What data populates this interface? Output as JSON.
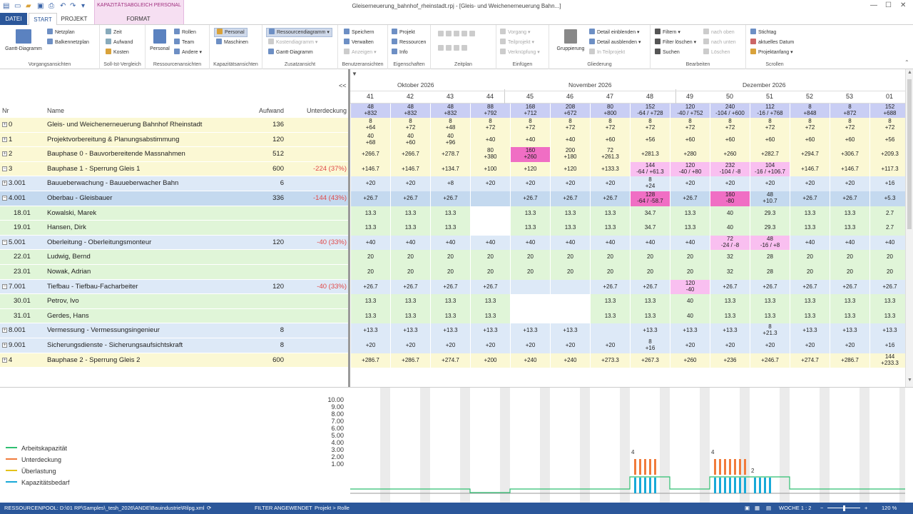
{
  "window": {
    "title": "Gleiserneuerung_bahnhof_rheinstadt.rpj - [Gleis- und Weichenerneuerung Bahn...]"
  },
  "tabs": {
    "file": "DATEI",
    "start": "START",
    "project": "PROJEKT",
    "context_band": "KAPAZITÄTSABGLEICH PERSONAL",
    "format": "FORMAT"
  },
  "ribbon": {
    "vorgang": {
      "gantt": "Gantt-Diagramm",
      "netzplan": "Netzplan",
      "balken": "Balkennetzplan",
      "label": "Vorgangsansichten"
    },
    "sollist": {
      "zeit": "Zeit",
      "aufwand": "Aufwand",
      "kosten": "Kosten",
      "label": "Soll-Ist-Vergleich"
    },
    "ressourcen": {
      "personal": "Personal",
      "rollen": "Rollen",
      "team": "Team",
      "andere": "Andere",
      "label": "Ressourcenansichten"
    },
    "kapazitaet": {
      "personal": "Personal",
      "maschinen": "Maschinen",
      "label": "Kapazitätsansichten"
    },
    "zusatz": {
      "ressourcendiagramm": "Ressourcendiagramm",
      "kostendiagramm": "Kostendiagramm",
      "gantt": "Gantt-Diagramm",
      "label": "Zusatzansicht"
    },
    "benutzer": {
      "speichern": "Speichern",
      "verwalten": "Verwalten",
      "anzeigen": "Anzeigen",
      "label": "Benutzeransichten"
    },
    "eigenschaften": {
      "projekt": "Projekt",
      "ressourcen": "Ressourcen",
      "info": "Info",
      "label": "Eigenschaften"
    },
    "zeitplan": {
      "label": "Zeitplan"
    },
    "einfuegen": {
      "vorgang": "Vorgang",
      "teilprojekt": "Teilprojekt",
      "verknuepfung": "Verknüpfung",
      "label": "Einfügen"
    },
    "gliederung": {
      "gruppierung": "Gruppierung",
      "einblenden": "Detail einblenden",
      "ausblenden": "Detail ausblenden",
      "in_teilprojekt": "In Teilprojekt",
      "label": "Gliederung"
    },
    "bearbeiten": {
      "filtern": "Filtern",
      "filter_loeschen": "Filter löschen",
      "suchen": "Suchen",
      "nach_oben": "nach oben",
      "nach_unten": "nach unten",
      "loeschen": "Löschen",
      "label": "Bearbeiten"
    },
    "scrollen": {
      "stichtag": "Stichtag",
      "datum": "aktuelles Datum",
      "projektanfang": "Projektanfang",
      "label": "Scrollen"
    }
  },
  "grid": {
    "collapse_btn": "<<",
    "headers": {
      "nr": "Nr",
      "name": "Name",
      "aufwand": "Aufwand",
      "unterdeckung": "Unterdeckung"
    },
    "months": [
      "Oktober 2026",
      "November 2026",
      "Dezember 2026"
    ],
    "weeks": [
      "41",
      "42",
      "43",
      "44",
      "45",
      "46",
      "47",
      "48",
      "49",
      "50",
      "51",
      "52",
      "53",
      "01"
    ],
    "capacity_top": [
      "48",
      "48",
      "48",
      "88",
      "168",
      "208",
      "80",
      "152",
      "120",
      "240",
      "112",
      "8",
      "8",
      "152"
    ],
    "capacity_bottom": [
      "+832",
      "+832",
      "+832",
      "+792",
      "+712",
      "+672",
      "+800",
      "-64 / +728",
      "-40 / +752",
      "-104 / +600",
      "-16 / +768",
      "+848",
      "+872",
      "+688"
    ],
    "rows": [
      {
        "nr": "0",
        "name": "Gleis- und Weichenerneuerung Bahnhof Rheinstadt",
        "aufwand": "136",
        "unter": "",
        "toggle": "+",
        "color": "#fbf8d4",
        "cells": [
          "8|+64",
          "8|+72",
          "8|+48",
          "8|+72",
          "8|+72",
          "8|+72",
          "8|+72",
          "8|+72",
          "8|+72",
          "8|+72",
          "8|+72",
          "8|+72",
          "8|+72",
          "8|+72"
        ]
      },
      {
        "nr": "1",
        "name": "Projektvorbereitung & Planungsabstimmung",
        "aufwand": "120",
        "unter": "",
        "toggle": "+",
        "color": "#fbf8d4",
        "cells": [
          "40|+68",
          "40|+60",
          "40|+96",
          "+40",
          "+40",
          "+40",
          "+60",
          "+56",
          "+60",
          "+60",
          "+60",
          "+60",
          "+60",
          "+56"
        ]
      },
      {
        "nr": "2",
        "name": "Bauphase 0 - Bauvorbereitende Massnahmen",
        "aufwand": "512",
        "unter": "",
        "toggle": "+",
        "color": "#fbf8d4",
        "cells": [
          "+266.7",
          "+266.7",
          "+278.7",
          "80|+380",
          "160|+260",
          "200|+180",
          "72|+261.3",
          "+281.3",
          "+280",
          "+260",
          "+282.7",
          "+294.7",
          "+306.7",
          "+209.3"
        ]
      },
      {
        "nr": "3",
        "name": "Bauphase 1 - Sperrung Gleis 1",
        "aufwand": "600",
        "unter": "-224 (37%)",
        "toggle": "−",
        "color": "#fbf8d4",
        "cells": [
          "+146.7",
          "+146.7",
          "+134.7",
          "+100",
          "+120",
          "+120",
          "+133.3",
          "144|-64 / +61.3",
          "120|-40 / +80",
          "232|-104 / -8",
          "104|-16 / +106.7",
          "+146.7",
          "+146.7",
          "+117.3"
        ]
      },
      {
        "nr": "3.001",
        "name": "Bauueberwachung - Bauueberwacher Bahn",
        "aufwand": "6",
        "unter": "",
        "toggle": "+",
        "color": "#dde9f7",
        "cells": [
          "+20",
          "+20",
          "+8",
          "+20",
          "+20",
          "+20",
          "+20",
          "8|+24",
          "+20",
          "+20",
          "+20",
          "+20",
          "+20",
          "+16"
        ]
      },
      {
        "nr": "4.001",
        "name": "Oberbau - Gleisbauer",
        "aufwand": "336",
        "unter": "-144 (43%)",
        "toggle": "−",
        "color": "#c4d9ef",
        "cells": [
          "+26.7",
          "+26.7",
          "+26.7",
          "",
          "+26.7",
          "+26.7",
          "+26.7",
          "128|-64 / -58.7",
          "+26.7",
          "160|-80",
          "48|+10.7",
          "+26.7",
          "+26.7",
          "+5.3"
        ]
      },
      {
        "nr": "18.01",
        "name": "Kowalski, Marek",
        "aufwand": "",
        "unter": "",
        "toggle": "",
        "color": "#e0f5d8",
        "cells": [
          "13.3",
          "13.3",
          "13.3",
          "",
          "13.3",
          "13.3",
          "13.3",
          "34.7",
          "13.3",
          "40",
          "29.3",
          "13.3",
          "13.3",
          "2.7"
        ]
      },
      {
        "nr": "19.01",
        "name": "Hansen, Dirk",
        "aufwand": "",
        "unter": "",
        "toggle": "",
        "color": "#e0f5d8",
        "cells": [
          "13.3",
          "13.3",
          "13.3",
          "",
          "13.3",
          "13.3",
          "13.3",
          "34.7",
          "13.3",
          "40",
          "29.3",
          "13.3",
          "13.3",
          "2.7"
        ]
      },
      {
        "nr": "5.001",
        "name": "Oberleitung - Oberleitungsmonteur",
        "aufwand": "120",
        "unter": "-40 (33%)",
        "toggle": "−",
        "color": "#dde9f7",
        "cells": [
          "+40",
          "+40",
          "+40",
          "+40",
          "+40",
          "+40",
          "+40",
          "+40",
          "+40",
          "72|-24 / -8",
          "48|-16 / +8",
          "+40",
          "+40",
          "+40"
        ]
      },
      {
        "nr": "22.01",
        "name": "Ludwig, Bernd",
        "aufwand": "",
        "unter": "",
        "toggle": "",
        "color": "#e0f5d8",
        "cells": [
          "20",
          "20",
          "20",
          "20",
          "20",
          "20",
          "20",
          "20",
          "20",
          "32",
          "28",
          "20",
          "20",
          "20"
        ]
      },
      {
        "nr": "23.01",
        "name": "Nowak, Adrian",
        "aufwand": "",
        "unter": "",
        "toggle": "",
        "color": "#e0f5d8",
        "cells": [
          "20",
          "20",
          "20",
          "20",
          "20",
          "20",
          "20",
          "20",
          "20",
          "32",
          "28",
          "20",
          "20",
          "20"
        ]
      },
      {
        "nr": "7.001",
        "name": "Tiefbau - Tiefbau-Facharbeiter",
        "aufwand": "120",
        "unter": "-40 (33%)",
        "toggle": "−",
        "color": "#dde9f7",
        "cells": [
          "+26.7",
          "+26.7",
          "+26.7",
          "+26.7",
          "",
          "",
          "+26.7",
          "+26.7",
          "120|-40",
          "+26.7",
          "+26.7",
          "+26.7",
          "+26.7",
          "+26.7"
        ]
      },
      {
        "nr": "30.01",
        "name": "Petrov, Ivo",
        "aufwand": "",
        "unter": "",
        "toggle": "",
        "color": "#e0f5d8",
        "cells": [
          "13.3",
          "13.3",
          "13.3",
          "13.3",
          "",
          "",
          "13.3",
          "13.3",
          "40",
          "13.3",
          "13.3",
          "13.3",
          "13.3",
          "13.3"
        ]
      },
      {
        "nr": "31.01",
        "name": "Gerdes, Hans",
        "aufwand": "",
        "unter": "",
        "toggle": "",
        "color": "#e0f5d8",
        "cells": [
          "13.3",
          "13.3",
          "13.3",
          "13.3",
          "",
          "",
          "13.3",
          "13.3",
          "40",
          "13.3",
          "13.3",
          "13.3",
          "13.3",
          "13.3"
        ]
      },
      {
        "nr": "8.001",
        "name": "Vermessung - Vermessungsingenieur",
        "aufwand": "8",
        "unter": "",
        "toggle": "+",
        "color": "#dde9f7",
        "cells": [
          "+13.3",
          "+13.3",
          "+13.3",
          "+13.3",
          "+13.3",
          "+13.3",
          "",
          "+13.3",
          "+13.3",
          "+13.3",
          "8|+21.3",
          "+13.3",
          "+13.3",
          "+13.3"
        ]
      },
      {
        "nr": "9.001",
        "name": "Sicherungsdienste - Sicherungsaufsichtskraft",
        "aufwand": "8",
        "unter": "",
        "toggle": "+",
        "color": "#dde9f7",
        "cells": [
          "+20",
          "+20",
          "+20",
          "+20",
          "+20",
          "+20",
          "+20",
          "8|+16",
          "+20",
          "+20",
          "+20",
          "+20",
          "+20",
          "+16"
        ]
      },
      {
        "nr": "4",
        "name": "Bauphase 2 - Sperrung Gleis 2",
        "aufwand": "600",
        "unter": "",
        "toggle": "+",
        "color": "#fbf8d4",
        "cells": [
          "+286.7",
          "+286.7",
          "+274.7",
          "+200",
          "+240",
          "+240",
          "+273.3",
          "+267.3",
          "+260",
          "+236",
          "+246.7",
          "+274.7",
          "+286.7",
          "144|+233.3"
        ]
      }
    ]
  },
  "chart": {
    "legend": [
      {
        "label": "Arbeitskapazität",
        "color": "#2fbf71"
      },
      {
        "label": "Unterdeckung",
        "color": "#f07b3c"
      },
      {
        "label": "Überlastung",
        "color": "#e4c21a"
      },
      {
        "label": "Kapazitätsbedarf",
        "color": "#18a9d8"
      }
    ],
    "yticks": [
      "10.00",
      "9.00",
      "8.00",
      "7.00",
      "6.00",
      "5.00",
      "4.00",
      "3.00",
      "2.00",
      "1.00"
    ],
    "annotations": [
      "4",
      "4",
      "2"
    ]
  },
  "status": {
    "pool": "RESSOURCENPOOL: D:\\01 RP\\Samples\\_tesh_2026\\ANDE\\Bauindustrie\\Rilpg.xml",
    "filter": "FILTER ANGEWENDET",
    "proj": "Projekt > Rolle",
    "woche": "WOCHE 1 : 2",
    "zoom": "120 %"
  }
}
